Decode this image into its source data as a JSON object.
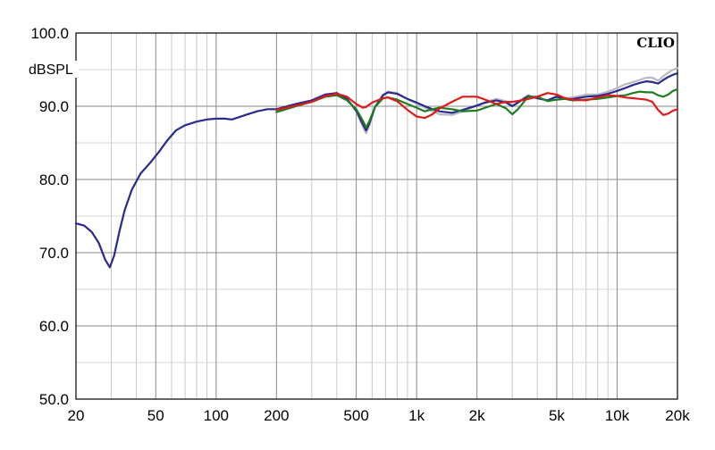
{
  "chart_data": {
    "type": "line",
    "ylabel": "dBSPL",
    "xlabel": "",
    "brand_label": "CLIO",
    "x_scale": "log",
    "xlim": [
      20,
      20000
    ],
    "ylim": [
      50,
      100
    ],
    "grid": true,
    "x_ticks": [
      {
        "value": 20,
        "label": "20"
      },
      {
        "value": 50,
        "label": "50"
      },
      {
        "value": 100,
        "label": "100"
      },
      {
        "value": 200,
        "label": "200"
      },
      {
        "value": 500,
        "label": "500"
      },
      {
        "value": 1000,
        "label": "1k"
      },
      {
        "value": 2000,
        "label": "2k"
      },
      {
        "value": 5000,
        "label": "5k"
      },
      {
        "value": 10000,
        "label": "10k"
      },
      {
        "value": 20000,
        "label": "20k"
      }
    ],
    "y_ticks": [
      {
        "value": 100,
        "label": "100.0"
      },
      {
        "value": 90,
        "label": "90.0"
      },
      {
        "value": 80,
        "label": "80.0"
      },
      {
        "value": 70,
        "label": "70.0"
      },
      {
        "value": 60,
        "label": "60.0"
      },
      {
        "value": 50,
        "label": "50.0"
      }
    ],
    "series": [
      {
        "color": "#b9b9c4",
        "points": [
          [
            200,
            89.6
          ],
          [
            250,
            90.3
          ],
          [
            300,
            90.8
          ],
          [
            350,
            91.6
          ],
          [
            400,
            91.8
          ],
          [
            450,
            91.0
          ],
          [
            500,
            89.3
          ],
          [
            540,
            87.2
          ],
          [
            560,
            86.3
          ],
          [
            580,
            87.3
          ],
          [
            620,
            89.9
          ],
          [
            680,
            91.6
          ],
          [
            720,
            92.0
          ],
          [
            800,
            91.8
          ],
          [
            900,
            91.0
          ],
          [
            1000,
            90.4
          ],
          [
            1100,
            89.8
          ],
          [
            1200,
            89.3
          ],
          [
            1300,
            88.9
          ],
          [
            1500,
            88.8
          ],
          [
            1700,
            89.3
          ],
          [
            2000,
            90.1
          ],
          [
            2200,
            90.6
          ],
          [
            2500,
            91.0
          ],
          [
            2800,
            90.7
          ],
          [
            3000,
            90.1
          ],
          [
            3200,
            90.6
          ],
          [
            3600,
            91.5
          ],
          [
            4000,
            91.1
          ],
          [
            4500,
            90.8
          ],
          [
            5000,
            91.4
          ],
          [
            5500,
            91.1
          ],
          [
            6000,
            91.2
          ],
          [
            7000,
            91.6
          ],
          [
            8000,
            91.6
          ],
          [
            9000,
            92.0
          ],
          [
            10000,
            92.5
          ],
          [
            11000,
            93.0
          ],
          [
            12000,
            93.3
          ],
          [
            13000,
            93.6
          ],
          [
            14000,
            93.9
          ],
          [
            15000,
            93.9
          ],
          [
            16000,
            93.5
          ],
          [
            17000,
            94.1
          ],
          [
            18000,
            94.6
          ],
          [
            19000,
            95.0
          ],
          [
            20000,
            95.2
          ]
        ]
      },
      {
        "color": "#2a2a8c",
        "points": [
          [
            20,
            74.0
          ],
          [
            22,
            73.7
          ],
          [
            24,
            72.8
          ],
          [
            26,
            71.3
          ],
          [
            28,
            69.0
          ],
          [
            29.5,
            68.0
          ],
          [
            31,
            69.6
          ],
          [
            33,
            73.0
          ],
          [
            35,
            75.8
          ],
          [
            38,
            78.6
          ],
          [
            42,
            80.8
          ],
          [
            47,
            82.3
          ],
          [
            52,
            83.8
          ],
          [
            57,
            85.3
          ],
          [
            63,
            86.7
          ],
          [
            70,
            87.4
          ],
          [
            80,
            87.9
          ],
          [
            90,
            88.2
          ],
          [
            100,
            88.3
          ],
          [
            110,
            88.3
          ],
          [
            120,
            88.2
          ],
          [
            140,
            88.8
          ],
          [
            160,
            89.3
          ],
          [
            180,
            89.6
          ],
          [
            200,
            89.6
          ],
          [
            250,
            90.3
          ],
          [
            300,
            90.8
          ],
          [
            350,
            91.6
          ],
          [
            400,
            91.8
          ],
          [
            450,
            91.0
          ],
          [
            500,
            89.4
          ],
          [
            540,
            87.5
          ],
          [
            560,
            86.7
          ],
          [
            580,
            87.6
          ],
          [
            620,
            89.9
          ],
          [
            680,
            91.5
          ],
          [
            720,
            91.9
          ],
          [
            800,
            91.7
          ],
          [
            900,
            91.0
          ],
          [
            1000,
            90.5
          ],
          [
            1100,
            90.0
          ],
          [
            1200,
            89.6
          ],
          [
            1300,
            89.3
          ],
          [
            1500,
            89.1
          ],
          [
            1700,
            89.5
          ],
          [
            2000,
            90.1
          ],
          [
            2200,
            90.5
          ],
          [
            2500,
            90.8
          ],
          [
            2800,
            90.5
          ],
          [
            3000,
            90.0
          ],
          [
            3200,
            90.5
          ],
          [
            3600,
            91.4
          ],
          [
            4000,
            91.1
          ],
          [
            4500,
            90.8
          ],
          [
            5000,
            91.3
          ],
          [
            5500,
            91.0
          ],
          [
            6000,
            91.0
          ],
          [
            7000,
            91.3
          ],
          [
            8000,
            91.4
          ],
          [
            9000,
            91.7
          ],
          [
            10000,
            92.1
          ],
          [
            11000,
            92.5
          ],
          [
            12000,
            92.9
          ],
          [
            13000,
            93.2
          ],
          [
            14000,
            93.4
          ],
          [
            15000,
            93.3
          ],
          [
            16000,
            93.1
          ],
          [
            17000,
            93.6
          ],
          [
            18000,
            94.0
          ],
          [
            19000,
            94.3
          ],
          [
            20000,
            94.5
          ]
        ]
      },
      {
        "color": "#1f7d1f",
        "points": [
          [
            200,
            89.2
          ],
          [
            250,
            90.0
          ],
          [
            300,
            90.6
          ],
          [
            350,
            91.3
          ],
          [
            400,
            91.5
          ],
          [
            450,
            90.8
          ],
          [
            500,
            89.6
          ],
          [
            540,
            88.0
          ],
          [
            560,
            87.1
          ],
          [
            580,
            87.9
          ],
          [
            620,
            89.9
          ],
          [
            680,
            91.1
          ],
          [
            720,
            91.2
          ],
          [
            800,
            90.9
          ],
          [
            900,
            90.3
          ],
          [
            1000,
            89.8
          ],
          [
            1100,
            89.3
          ],
          [
            1200,
            89.6
          ],
          [
            1300,
            89.8
          ],
          [
            1500,
            89.6
          ],
          [
            1700,
            89.3
          ],
          [
            2000,
            89.4
          ],
          [
            2200,
            89.8
          ],
          [
            2500,
            90.3
          ],
          [
            2800,
            89.7
          ],
          [
            3000,
            88.9
          ],
          [
            3200,
            89.6
          ],
          [
            3600,
            91.3
          ],
          [
            4000,
            91.3
          ],
          [
            4500,
            90.7
          ],
          [
            5000,
            90.9
          ],
          [
            5500,
            91.0
          ],
          [
            6000,
            90.8
          ],
          [
            7000,
            90.9
          ],
          [
            8000,
            91.0
          ],
          [
            9000,
            91.2
          ],
          [
            10000,
            91.4
          ],
          [
            11000,
            91.5
          ],
          [
            12000,
            91.8
          ],
          [
            13000,
            92.0
          ],
          [
            14000,
            91.9
          ],
          [
            15000,
            91.9
          ],
          [
            16000,
            91.5
          ],
          [
            17000,
            91.3
          ],
          [
            18000,
            91.6
          ],
          [
            19000,
            92.1
          ],
          [
            20000,
            92.3
          ]
        ]
      },
      {
        "color": "#dd1b1b",
        "points": [
          [
            200,
            89.5
          ],
          [
            250,
            90.1
          ],
          [
            300,
            90.6
          ],
          [
            350,
            91.4
          ],
          [
            400,
            91.7
          ],
          [
            450,
            91.3
          ],
          [
            500,
            90.3
          ],
          [
            540,
            89.8
          ],
          [
            560,
            89.9
          ],
          [
            600,
            90.5
          ],
          [
            680,
            91.1
          ],
          [
            720,
            91.2
          ],
          [
            800,
            90.7
          ],
          [
            900,
            89.5
          ],
          [
            1000,
            88.6
          ],
          [
            1100,
            88.4
          ],
          [
            1200,
            88.9
          ],
          [
            1300,
            89.7
          ],
          [
            1500,
            90.6
          ],
          [
            1700,
            91.3
          ],
          [
            2000,
            91.3
          ],
          [
            2200,
            90.9
          ],
          [
            2500,
            90.3
          ],
          [
            2800,
            90.6
          ],
          [
            3000,
            90.6
          ],
          [
            3500,
            90.9
          ],
          [
            4000,
            91.3
          ],
          [
            4500,
            91.8
          ],
          [
            5000,
            91.6
          ],
          [
            5500,
            91.1
          ],
          [
            6000,
            90.9
          ],
          [
            7000,
            90.8
          ],
          [
            8000,
            91.2
          ],
          [
            9000,
            91.5
          ],
          [
            10000,
            91.4
          ],
          [
            11000,
            91.2
          ],
          [
            12000,
            91.1
          ],
          [
            13000,
            91.0
          ],
          [
            14000,
            90.9
          ],
          [
            15000,
            90.6
          ],
          [
            16000,
            89.5
          ],
          [
            17000,
            88.8
          ],
          [
            18000,
            89.0
          ],
          [
            19000,
            89.4
          ],
          [
            20000,
            89.6
          ]
        ]
      }
    ]
  }
}
